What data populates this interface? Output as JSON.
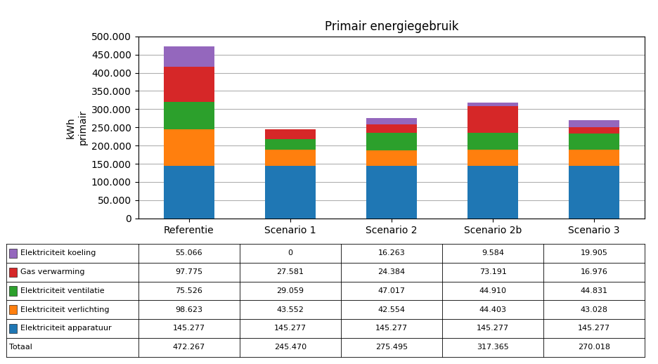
{
  "chart_data": {
    "type": "bar",
    "stacked": true,
    "title": "Primair energiegebruik",
    "y_label": "kWh\nprimair",
    "categories": [
      "Referentie",
      "Scenario 1",
      "Scenario 2",
      "Scenario 2b",
      "Scenario 3"
    ],
    "series": [
      {
        "name": "Elektriciteit apparatuur",
        "values": [
          145277,
          145277,
          145277,
          145277,
          145277
        ],
        "value_labels": [
          "145.277",
          "145.277",
          "145.277",
          "145.277",
          "145.277"
        ]
      },
      {
        "name": "Elektriciteit verlichting",
        "values": [
          98623,
          43552,
          42554,
          44403,
          43028
        ],
        "value_labels": [
          "98.623",
          "43.552",
          "42.554",
          "44.403",
          "43.028"
        ]
      },
      {
        "name": "Elektriciteit ventilatie",
        "values": [
          75526,
          29059,
          47017,
          44910,
          44831
        ],
        "value_labels": [
          "75.526",
          "29.059",
          "47.017",
          "44.910",
          "44.831"
        ]
      },
      {
        "name": "Gas verwarming",
        "values": [
          97775,
          27581,
          24384,
          73191,
          16976
        ],
        "value_labels": [
          "97.775",
          "27.581",
          "24.384",
          "73.191",
          "16.976"
        ]
      },
      {
        "name": "Elektriciteit koeling",
        "values": [
          55066,
          0,
          16263,
          9584,
          19905
        ],
        "value_labels": [
          "55.066",
          "0",
          "16.263",
          "9.584",
          "19.905"
        ]
      }
    ],
    "totals": {
      "name": "Totaal",
      "values": [
        472267,
        245470,
        275495,
        317365,
        270018
      ],
      "value_labels": [
        "472.267",
        "245.470",
        "275.495",
        "317.365",
        "270.018"
      ]
    },
    "ylim": [
      0,
      500000
    ],
    "yticks": [
      0,
      {
        "value": 50000,
        "label": "50.000"
      },
      {
        "value": 100000,
        "label": "100.000"
      },
      {
        "value": 150000,
        "label": "150.000"
      },
      {
        "value": 200000,
        "label": "200.000"
      },
      {
        "value": 250000,
        "label": "250.000"
      },
      {
        "value": 300000,
        "label": "300.000"
      },
      {
        "value": 350000,
        "label": "350.000"
      },
      {
        "value": 400000,
        "label": "400.000"
      },
      {
        "value": 450000,
        "label": "450.000"
      },
      {
        "value": 500000,
        "label": "500.000"
      }
    ],
    "grid": true
  }
}
